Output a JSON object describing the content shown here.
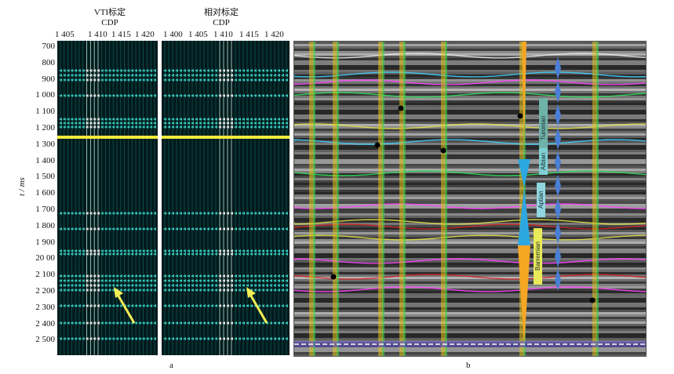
{
  "panel_a": {
    "left_title_1": "VTI标定",
    "left_title_2": "CDP",
    "right_title_1": "相对标定",
    "right_title_2": "CDP",
    "left_xticks": [
      "1 405",
      "1 410",
      "1 415",
      "1 420"
    ],
    "right_xticks": [
      "1 400",
      "1 405",
      "1 410",
      "1 415",
      "1 420"
    ],
    "y_label": "t / ms",
    "y_ticks": [
      "700",
      "800",
      "900",
      "1 000",
      "1 100",
      "1 200",
      "1 300",
      "1 400",
      "1 500",
      "1 600",
      "1 700",
      "1 800",
      "1 900",
      "20 00",
      "2 100",
      "2 200",
      "2 300",
      "2 400",
      "2 500"
    ],
    "sublabel": "a",
    "highlight_color": "#f4ea3a",
    "arrow_color": "#f2ef55"
  },
  "panel_b": {
    "sublabel": "b",
    "stages": [
      "Turonian",
      "Albian",
      "Aptian",
      "Barremian"
    ],
    "horizon_colors": [
      "#e8e8e8",
      "#3fd0ff",
      "#ff3fff",
      "#2ee05a",
      "#e0e04a",
      "#3fd0ff",
      "#2ee05a",
      "#ff3fff",
      "#e0e04a",
      "#d02020",
      "#e0e04a",
      "#ff3fff",
      "#d02020",
      "#ff3fff"
    ]
  }
}
